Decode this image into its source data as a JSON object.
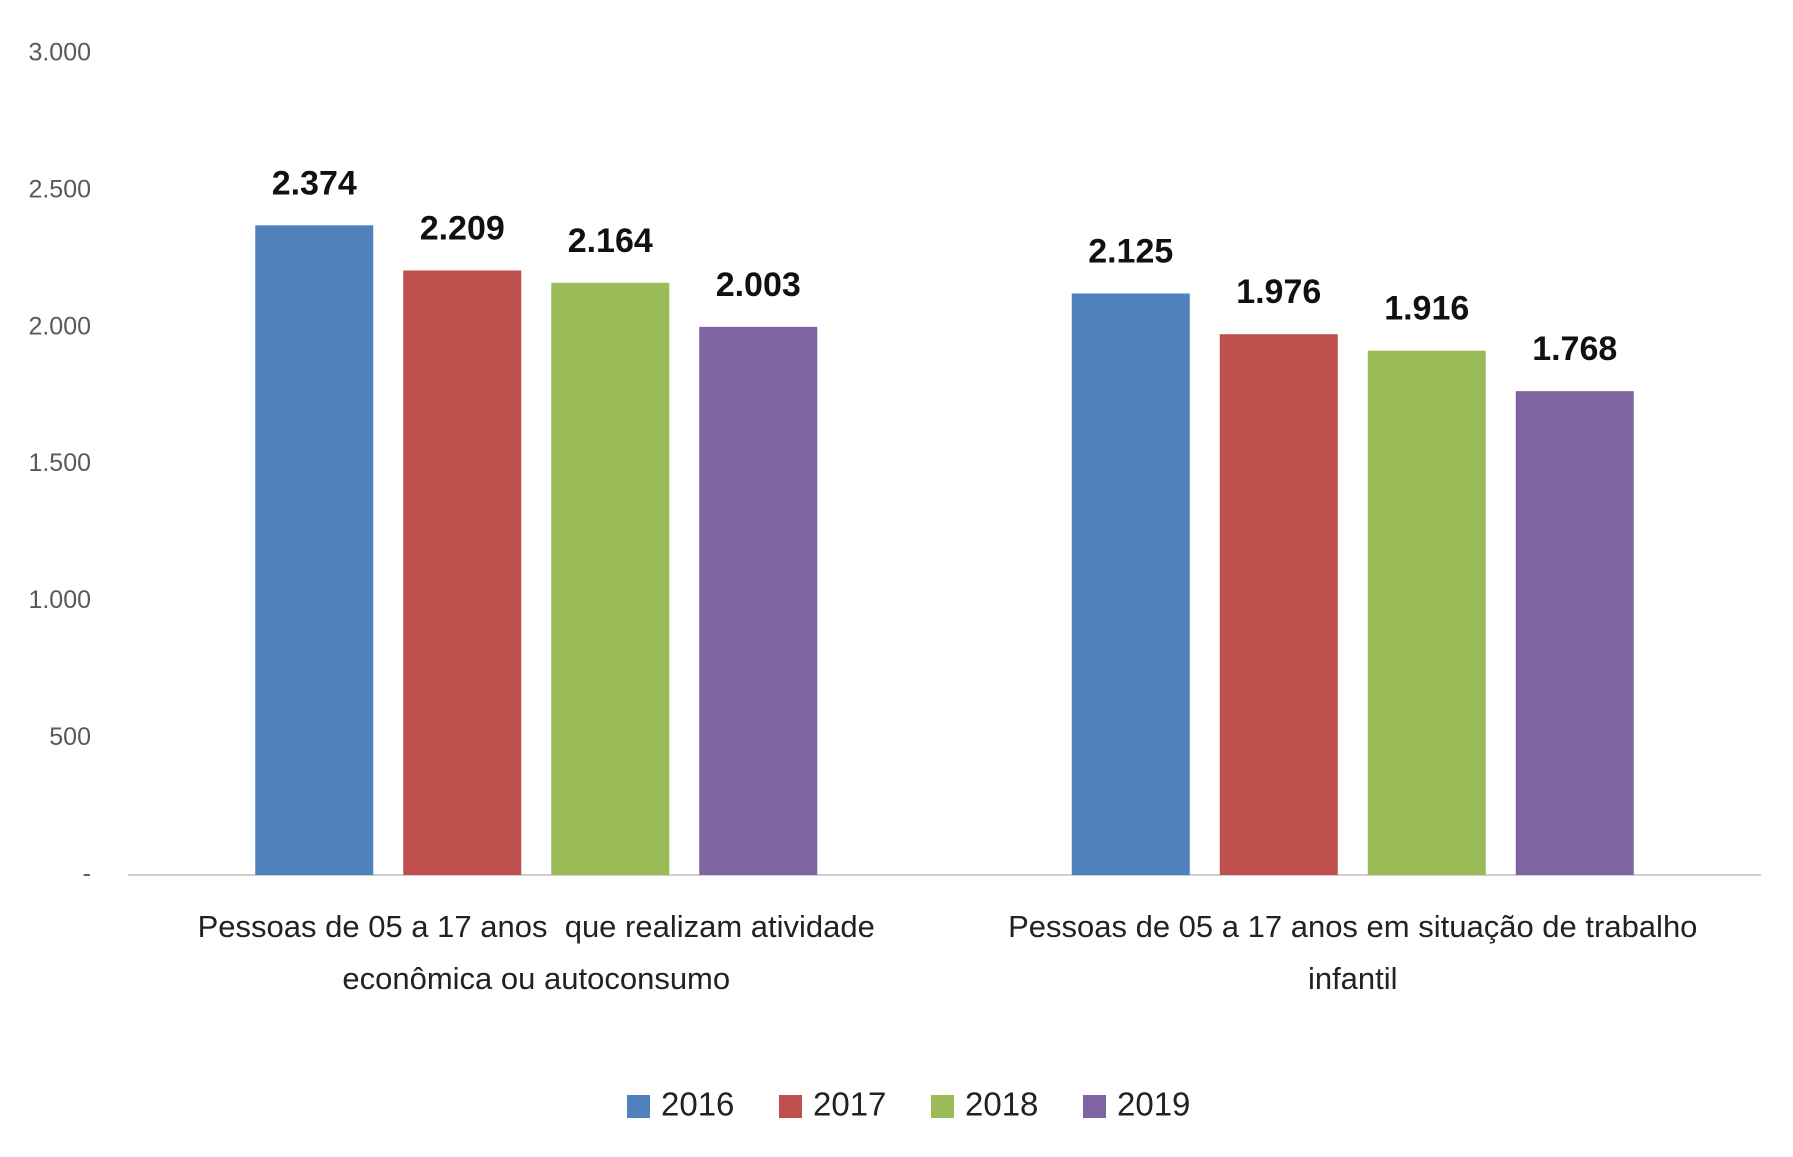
{
  "chart_data": {
    "type": "bar",
    "categories": [
      "Pessoas de 05 a 17 anos  que realizam atividade econômica ou autoconsumo",
      "Pessoas de 05 a 17 anos em situação de trabalho infantil"
    ],
    "series": [
      {
        "name": "2016",
        "color": "#4f81bd",
        "values": [
          2374,
          2125
        ],
        "value_labels": [
          "2.374",
          "2.125"
        ]
      },
      {
        "name": "2017",
        "color": "#c0504d",
        "values": [
          2209,
          1976
        ],
        "value_labels": [
          "2.209",
          "1.976"
        ]
      },
      {
        "name": "2018",
        "color": "#9bbb59",
        "values": [
          2164,
          1916
        ],
        "value_labels": [
          "2.164",
          "1.916"
        ]
      },
      {
        "name": "2019",
        "color": "#8064a2",
        "values": [
          2003,
          1768
        ],
        "value_labels": [
          "2.003",
          "1.768"
        ]
      }
    ],
    "ylim": [
      0,
      3000
    ],
    "yticks": [
      {
        "value": 0,
        "label": "-"
      },
      500,
      {
        "value": 1000,
        "label": "1.000"
      },
      {
        "value": 1500,
        "label": "1.500"
      },
      {
        "value": 2000,
        "label": "2.000"
      },
      {
        "value": 2500,
        "label": "2.500"
      },
      {
        "value": 3000,
        "label": "3.000"
      }
    ],
    "grid": false,
    "legend": "bottom"
  }
}
